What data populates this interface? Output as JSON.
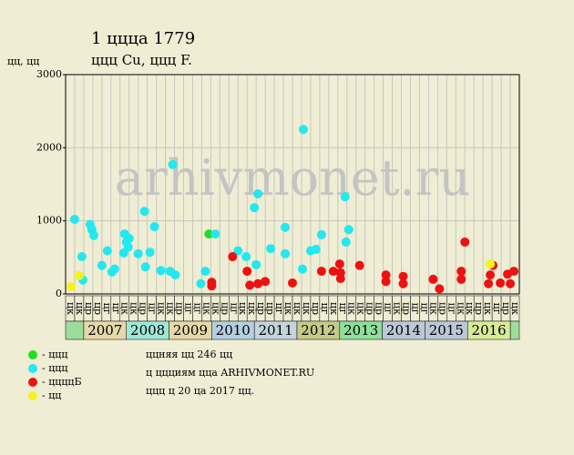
{
  "chart_data": {
    "type": "scatter",
    "title": "1 цццa 1779",
    "subtitle": "ццц Cu, ццц F.",
    "y_label": "цц, цц",
    "watermark": "arhivmonet.ru",
    "xlim": [
      0,
      50
    ],
    "ylim": [
      0,
      3000
    ],
    "yticks": [
      0,
      1000,
      2000,
      3000
    ],
    "grid": true,
    "column_labels": [
      "цк",
      "цк",
      "цр",
      "цр",
      "цг",
      "цг",
      "цк",
      "цк",
      "цр",
      "цг",
      "цк",
      "цк",
      "цр",
      "цг",
      "цг",
      "цк",
      "цк",
      "цр",
      "цг",
      "цк",
      "цк",
      "цр",
      "цр",
      "цг",
      "цк",
      "цк",
      "цк",
      "цр",
      "цг",
      "цк",
      "цг",
      "цк",
      "цк",
      "цр",
      "цр",
      "цг",
      "цк",
      "цр",
      "цг",
      "цг",
      "цк",
      "цр",
      "цг",
      "цк",
      "цк",
      "цр",
      "цк",
      "цг",
      "цр",
      "цк"
    ],
    "years": [
      "2007",
      "2008",
      "2009",
      "2010",
      "2011",
      "2012",
      "2013",
      "2014",
      "2015",
      "2016"
    ],
    "year_colors": [
      "#e6d8a8",
      "#9ee8d8",
      "#e6d8a8",
      "#b4d0e0",
      "#c4d4dc",
      "#c4cc88",
      "#8ee09a",
      "#bcc8d8",
      "#bcc8d8",
      "#d8ec98"
    ],
    "series": [
      {
        "name": "- ццц",
        "color": "#22dd22",
        "x": [
          15.8
        ],
        "values": [
          820
        ]
      },
      {
        "name": "- ццц",
        "color": "#22e8f0",
        "x": [
          1.0,
          1.8,
          1.9,
          2.7,
          2.9,
          3.1,
          4.0,
          4.6,
          5.1,
          5.4,
          6.5,
          6.4,
          6.7,
          6.9,
          7.0,
          8.0,
          8.7,
          8.8,
          9.3,
          9.8,
          10.5,
          11.5,
          11.8,
          12.1,
          14.9,
          15.4,
          16.5,
          19.0,
          19.9,
          20.8,
          21.2,
          21.0,
          22.6,
          24.2,
          24.2,
          26.2,
          26.1,
          27.0,
          27.6,
          28.2,
          30.8,
          31.2,
          30.9
        ],
        "values": [
          1020,
          510,
          190,
          950,
          880,
          800,
          390,
          590,
          300,
          340,
          820,
          560,
          710,
          640,
          760,
          550,
          1130,
          370,
          570,
          920,
          320,
          310,
          1770,
          260,
          140,
          310,
          820,
          590,
          510,
          1180,
          1370,
          400,
          620,
          910,
          550,
          2250,
          340,
          590,
          610,
          810,
          1330,
          880,
          710
        ]
      },
      {
        "name": "- ццццБ",
        "color": "#ee1111",
        "x": [
          16.1,
          16.1,
          18.4,
          20.0,
          20.3,
          21.2,
          22.0,
          25.0,
          28.2,
          29.5,
          30.2,
          30.3,
          30.3,
          32.4,
          35.3,
          35.3,
          37.2,
          37.2,
          40.5,
          41.2,
          43.6,
          43.6,
          44.0,
          46.6,
          46.8,
          47.1,
          47.9,
          48.7,
          49.0,
          49.4
        ],
        "values": [
          160,
          110,
          510,
          310,
          120,
          140,
          170,
          150,
          310,
          310,
          410,
          290,
          210,
          390,
          260,
          170,
          240,
          140,
          200,
          70,
          310,
          200,
          710,
          140,
          260,
          390,
          150,
          270,
          140,
          310
        ]
      },
      {
        "name": "- цц",
        "color": "#f4f41c",
        "x": [
          0.6,
          1.5,
          46.8
        ],
        "values": [
          100,
          250,
          410
        ]
      }
    ],
    "notes": [
      "ццняя цц 246 цц",
      "ц ццциям ццa ARHIVMONET.RU",
      "ццц ц 20 цa 2017 цц."
    ]
  }
}
